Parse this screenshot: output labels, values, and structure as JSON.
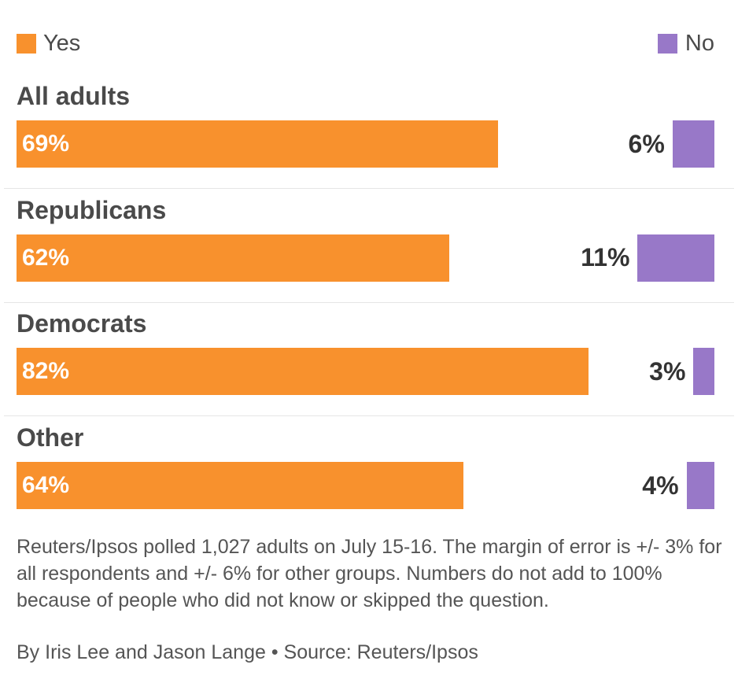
{
  "chart_data": {
    "type": "bar",
    "orientation": "horizontal",
    "categories": [
      "All adults",
      "Republicans",
      "Democrats",
      "Other"
    ],
    "series": [
      {
        "name": "Yes",
        "color": "#f8912d",
        "values": [
          69,
          62,
          82,
          64
        ],
        "labels": [
          "69%",
          "62%",
          "82%",
          "64%"
        ]
      },
      {
        "name": "No",
        "color": "#9878c8",
        "values": [
          6,
          11,
          3,
          4
        ],
        "labels": [
          "6%",
          "11%",
          "3%",
          "4%"
        ]
      }
    ],
    "legend_position": "top",
    "xlim": [
      0,
      100
    ],
    "grid": false
  },
  "note": "Reuters/Ipsos polled 1,027 adults on July 15-16. The margin of error is +/- 3% for all respondents and +/- 6% for other groups. Numbers do not add to 100% because of people who did not know or skipped the question.",
  "credit": "By Iris Lee and Jason Lange • Source: Reuters/Ipsos"
}
